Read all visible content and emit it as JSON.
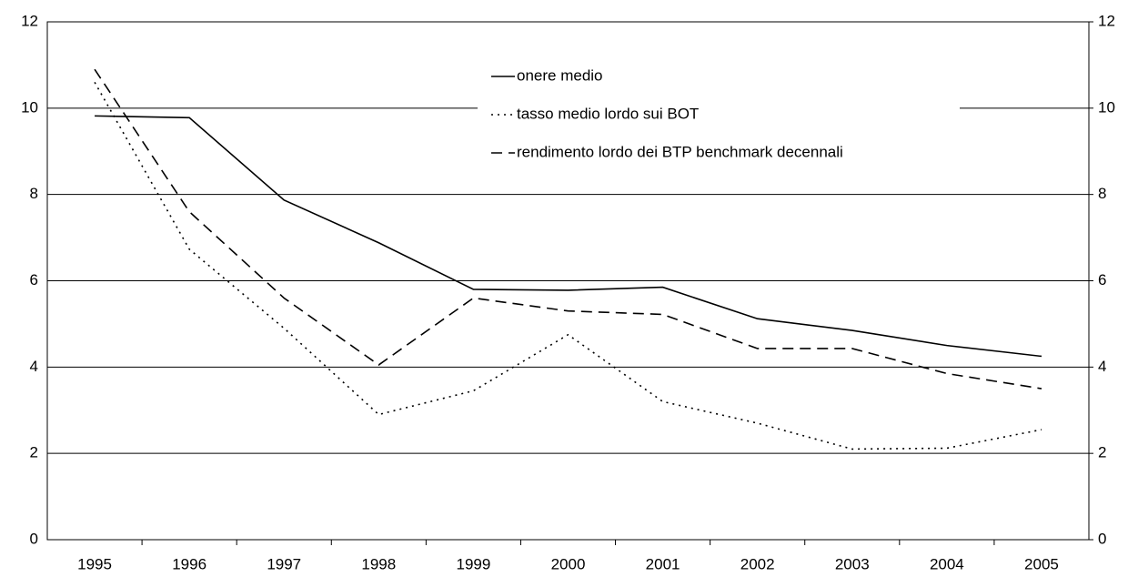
{
  "chart_data": {
    "type": "line",
    "categories": [
      "1995",
      "1996",
      "1997",
      "1998",
      "1999",
      "2000",
      "2001",
      "2002",
      "2003",
      "2004",
      "2005"
    ],
    "series": [
      {
        "name": "onere medio",
        "color": "#000000",
        "dash": "solid",
        "values": [
          9.82,
          9.78,
          7.87,
          6.88,
          5.8,
          5.78,
          5.85,
          5.12,
          4.85,
          4.5,
          4.25
        ]
      },
      {
        "name": "tasso medio lordo sui BOT",
        "color": "#000000",
        "dash": "dotted",
        "values": [
          10.6,
          6.73,
          4.9,
          2.9,
          3.45,
          4.75,
          3.2,
          2.7,
          2.1,
          2.12,
          2.55
        ]
      },
      {
        "name": "rendimento lordo dei BTP benchmark decennali",
        "color": "#000000",
        "dash": "dashed",
        "values": [
          10.9,
          7.6,
          5.6,
          4.05,
          5.6,
          5.3,
          5.22,
          4.43,
          4.43,
          3.85,
          3.5
        ]
      }
    ],
    "ylim": [
      0,
      12
    ],
    "yticks": [
      0,
      2,
      4,
      6,
      8,
      10,
      12
    ],
    "y2lim": [
      0,
      12
    ],
    "y2ticks": [
      0,
      2,
      4,
      6,
      8,
      10,
      12
    ],
    "grid": true
  }
}
